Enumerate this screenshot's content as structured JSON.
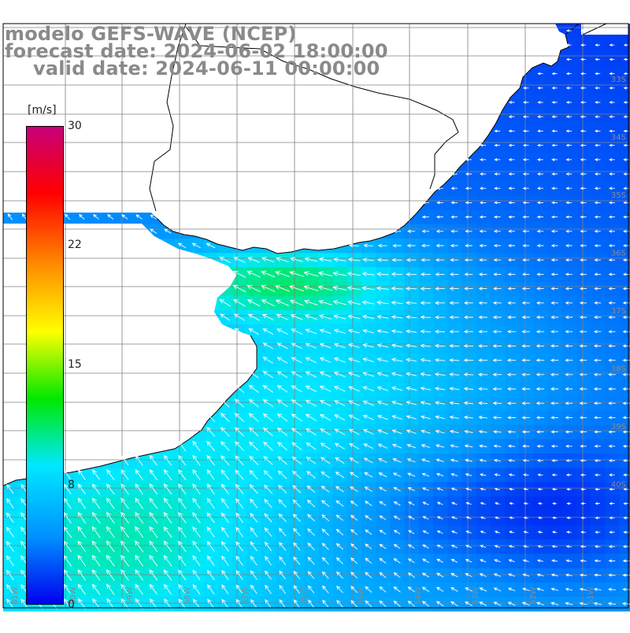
{
  "title": {
    "model": "modelo GEFS-WAVE (NCEP)",
    "forecast": "forecast date: 2024-06-02 18:00:00",
    "valid": "valid date: 2024-06-11 00:00:00"
  },
  "colorbar": {
    "units": "[m/s]",
    "ticks": [
      "30",
      "22",
      "15",
      "8",
      "0"
    ],
    "tick_values": [
      30,
      22,
      15,
      8,
      0
    ],
    "range": [
      0,
      30
    ],
    "colors": [
      "#0000ee",
      "#0090ff",
      "#00e8ff",
      "#00e800",
      "#ffff00",
      "#ff8c00",
      "#ff0000",
      "#c8007a"
    ]
  },
  "map": {
    "lat_labels": [
      "33S",
      "34S",
      "35S",
      "36S",
      "37S",
      "38S",
      "39S",
      "40S"
    ],
    "lon_labels": [
      "61W",
      "60W",
      "59W",
      "58W",
      "57W",
      "56W",
      "55W",
      "54W",
      "53W",
      "52W",
      "51W"
    ],
    "land_color": "#ffffff",
    "grid_color": "#808080",
    "arrow_color": "#ffffff",
    "wind_direction": "from east to west, turning toward the southwest near the coast"
  }
}
